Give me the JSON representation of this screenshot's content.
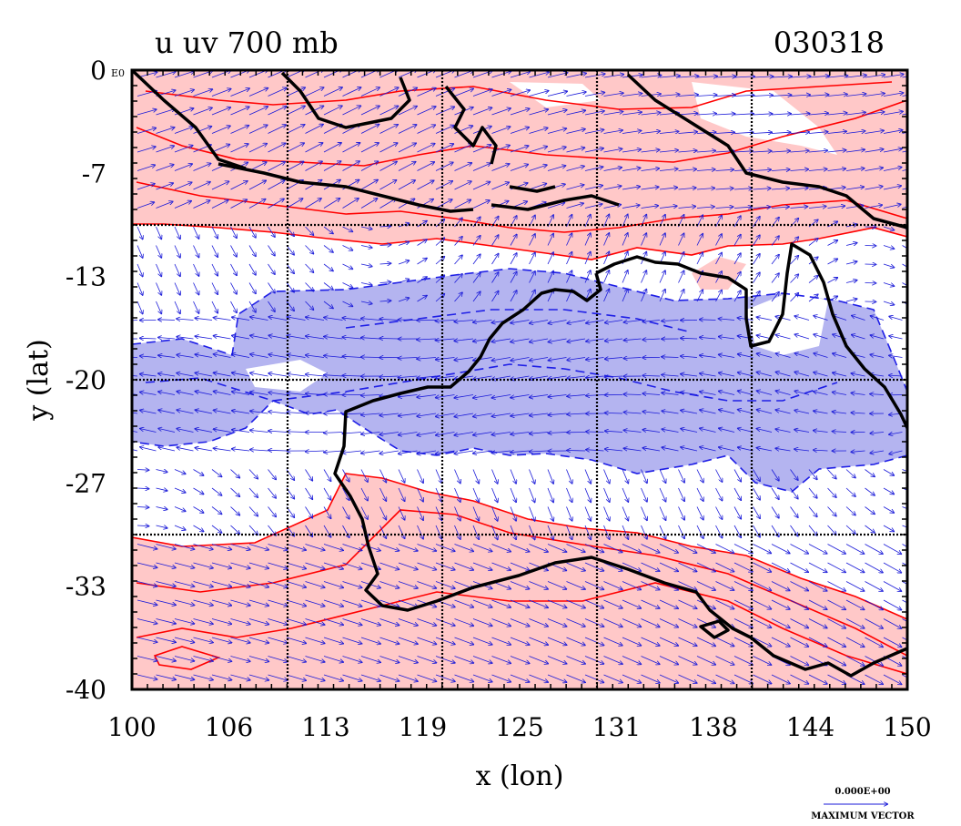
{
  "header": {
    "title": "u uv 700 mb",
    "date": "030318"
  },
  "axes": {
    "xlabel": "x (lon)",
    "ylabel": "y (lat)",
    "xticks": [
      "100",
      "106",
      "113",
      "119",
      "125",
      "131",
      "138",
      "144",
      "150"
    ],
    "yticks": [
      "0",
      "-7",
      "-13",
      "-20",
      "-27",
      "-33",
      "-40"
    ],
    "corner_note": "E0",
    "xlim": [
      100,
      150
    ],
    "ylim": [
      -40,
      0
    ]
  },
  "reference_vector": {
    "value": "0.000E+00",
    "label": "MAXIMUM VECTOR"
  },
  "colors": {
    "positive_fill": "#ffc8c8",
    "positive_line": "#ff0000",
    "negative_fill": "#b4b4f0",
    "negative_line": "#1e1ee6",
    "vector": "#1a1ad8",
    "coast": "#000000"
  }
}
